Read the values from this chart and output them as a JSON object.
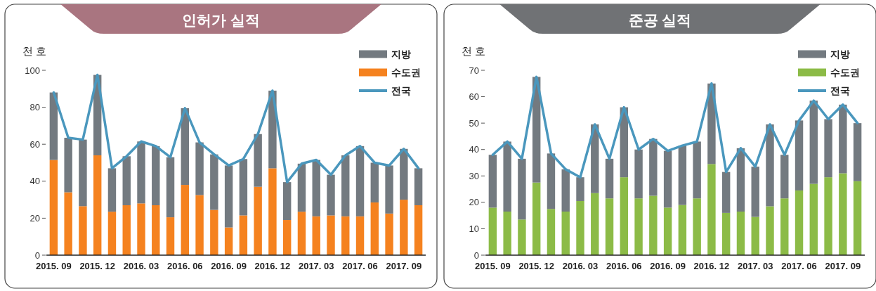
{
  "chart_data": [
    {
      "type": "bar",
      "title": "인허가 실적",
      "ylabel": "천 호",
      "stacked": true,
      "legend": "top right",
      "ylim": [
        0,
        100
      ],
      "yticks": [
        0,
        20,
        40,
        60,
        80,
        100
      ],
      "categories": [
        "2015. 09",
        null,
        null,
        "2015. 12",
        null,
        null,
        "2016. 03",
        null,
        null,
        "2016. 06",
        null,
        null,
        "2016. 09",
        null,
        null,
        "2016. 12",
        null,
        null,
        "2017. 03",
        null,
        null,
        "2017. 06",
        null,
        null,
        "2017. 09",
        null
      ],
      "series": [
        {
          "name": "수도권",
          "color": "#f5821f",
          "values": [
            51.5,
            34,
            26.5,
            54,
            23.5,
            27,
            28,
            27,
            20.5,
            38,
            32.5,
            24.5,
            15,
            21.5,
            37,
            47,
            19,
            23.5,
            21,
            21.5,
            21,
            21,
            28.5,
            22.5,
            30,
            27
          ]
        },
        {
          "name": "지방",
          "color": "#737a80",
          "values": [
            36.5,
            29.5,
            36,
            43.5,
            23.5,
            26.5,
            33.5,
            32,
            32.5,
            41.5,
            28.5,
            30,
            33.5,
            30.5,
            28.5,
            42,
            20.5,
            26,
            30.5,
            22,
            33,
            38,
            21.5,
            26,
            27.5,
            20
          ]
        },
        {
          "name": "전국",
          "type": "line",
          "color": "#4a97bd",
          "values": [
            88,
            63.5,
            62.5,
            97.5,
            47,
            53.5,
            61.5,
            59,
            53,
            79.5,
            61,
            54.5,
            48.5,
            52,
            65.5,
            89,
            39.5,
            49.5,
            51.5,
            43.5,
            54,
            59,
            50,
            48.5,
            57.5,
            47
          ]
        }
      ]
    },
    {
      "type": "bar",
      "title": "준공 실적",
      "ylabel": "천 호",
      "stacked": true,
      "legend": "top right",
      "ylim": [
        0,
        70
      ],
      "yticks": [
        0,
        10,
        20,
        30,
        40,
        50,
        60,
        70
      ],
      "categories": [
        "2015. 09",
        null,
        null,
        "2015. 12",
        null,
        null,
        "2016. 03",
        null,
        null,
        "2016. 06",
        null,
        null,
        "2016. 09",
        null,
        null,
        "2016. 12",
        null,
        null,
        "2017. 03",
        null,
        null,
        "2017. 06",
        null,
        null,
        "2017. 09",
        null
      ],
      "series": [
        {
          "name": "수도권",
          "color": "#8cbb47",
          "values": [
            18,
            16.5,
            13.5,
            27.5,
            17.5,
            16.5,
            20.5,
            23.5,
            21.5,
            29.5,
            21.5,
            22.5,
            18,
            19,
            21.5,
            34.5,
            16,
            16.5,
            14.5,
            18.5,
            21.5,
            24.5,
            27,
            29.5,
            31,
            28
          ]
        },
        {
          "name": "지방",
          "color": "#737a80",
          "values": [
            20,
            26.5,
            23,
            40,
            21,
            16,
            9,
            26,
            15,
            26.5,
            18.5,
            21.5,
            21.5,
            22.5,
            21.5,
            30.5,
            15.5,
            24,
            19,
            31,
            16.5,
            26.5,
            31.5,
            22,
            26,
            22
          ]
        },
        {
          "name": "전국",
          "type": "line",
          "color": "#4a97bd",
          "values": [
            38,
            43,
            36.5,
            67.5,
            38.5,
            32.5,
            29.5,
            49.5,
            36.5,
            56,
            40,
            44,
            39.5,
            41.5,
            43,
            65,
            31.5,
            40.5,
            33.5,
            49.5,
            38,
            51,
            58.5,
            51.5,
            57,
            50
          ]
        }
      ]
    }
  ]
}
